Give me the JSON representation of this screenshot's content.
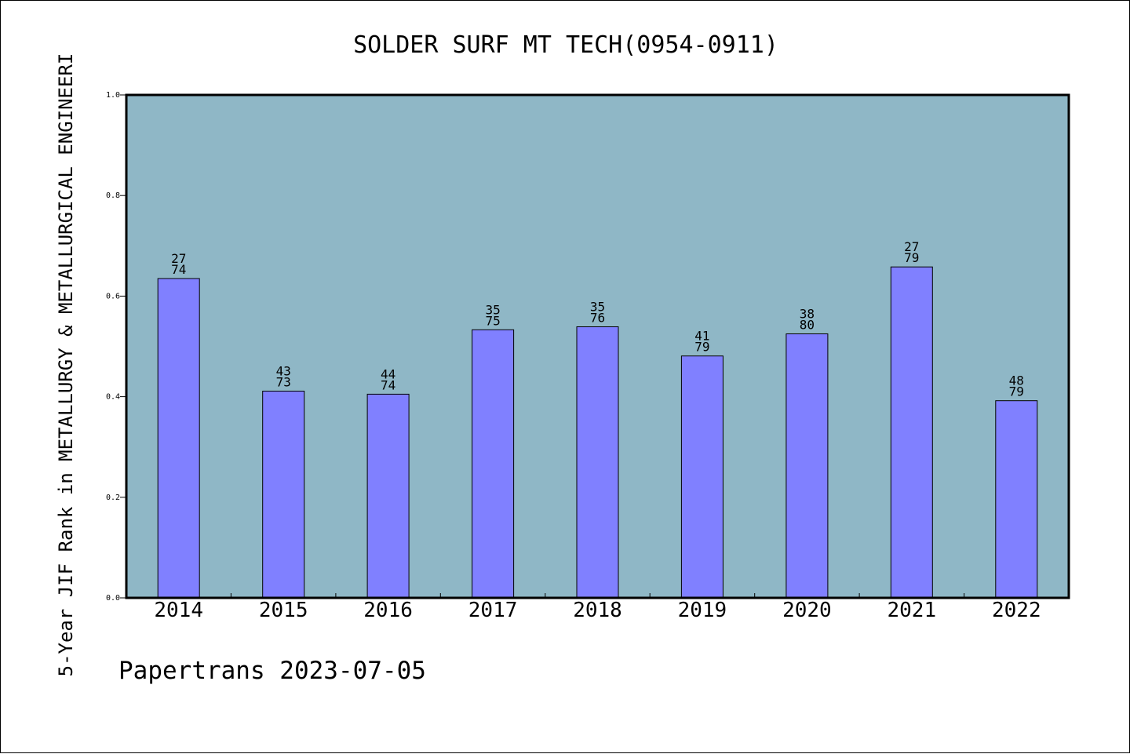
{
  "chart_data": {
    "type": "bar",
    "title": "SOLDER SURF MT TECH(0954-0911)",
    "xlabel": "",
    "ylabel": "5-Year JIF Rank in METALLURGY & METALLURGICAL ENGINEERI",
    "ylim": [
      0,
      1.0
    ],
    "yticks": [
      "0.0",
      "0.2",
      "0.4",
      "0.6",
      "0.8",
      "1.0"
    ],
    "categories": [
      "2014",
      "2015",
      "2016",
      "2017",
      "2018",
      "2019",
      "2020",
      "2021",
      "2022"
    ],
    "values": [
      0.635,
      0.411,
      0.405,
      0.533,
      0.539,
      0.481,
      0.525,
      0.658,
      0.392
    ],
    "labels_top": [
      "27",
      "43",
      "44",
      "35",
      "35",
      "41",
      "38",
      "27",
      "48"
    ],
    "labels_bottom": [
      "74",
      "73",
      "74",
      "75",
      "76",
      "79",
      "80",
      "79",
      "79"
    ],
    "grid": false,
    "colors": {
      "plot_bg": "#8fb7c6",
      "bar": "#8080ff",
      "axis": "#000000"
    }
  },
  "footer": "Papertrans 2023-07-05"
}
